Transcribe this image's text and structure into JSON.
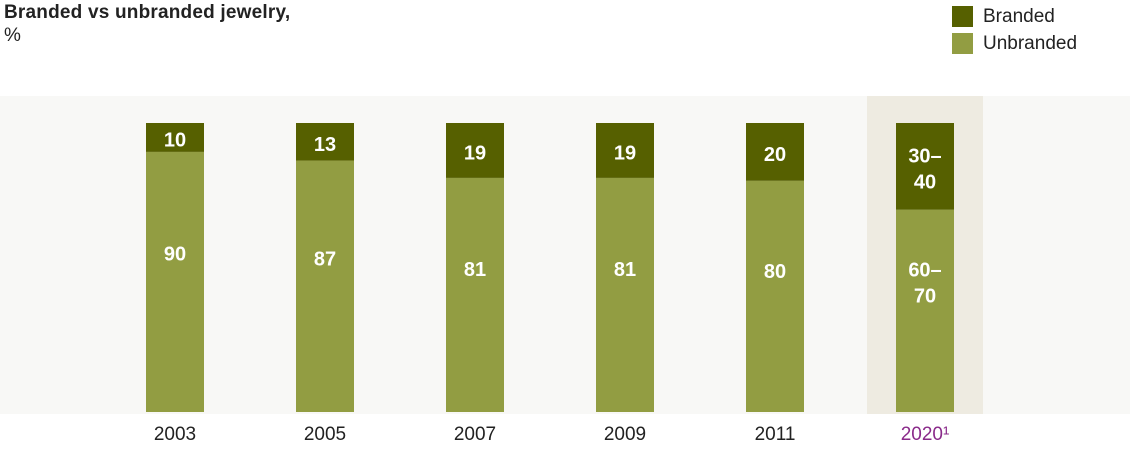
{
  "chart_data": {
    "type": "bar",
    "stacked": true,
    "title": "Branded vs unbranded jewelry,",
    "subtitle": "%",
    "categories": [
      "2003",
      "2005",
      "2007",
      "2009",
      "2011",
      "2020¹"
    ],
    "highlight_category": "2020¹",
    "series": [
      {
        "name": "Branded",
        "color": "#566000",
        "values": [
          10,
          13,
          19,
          19,
          20,
          30
        ],
        "labels": [
          "10",
          "13",
          "19",
          "19",
          "20",
          [
            "30–",
            "40"
          ]
        ]
      },
      {
        "name": "Unbranded",
        "color": "#929d42",
        "values": [
          90,
          87,
          81,
          81,
          80,
          70
        ],
        "labels": [
          "90",
          "87",
          "81",
          "81",
          "80",
          [
            "60–",
            "70"
          ]
        ]
      }
    ],
    "ylim": [
      0,
      100
    ],
    "colors": {
      "label_text": "#ffffff",
      "axis_text": "#222222",
      "highlight_text": "#8a2a8a",
      "highlight_band": "#eeebe1"
    }
  }
}
